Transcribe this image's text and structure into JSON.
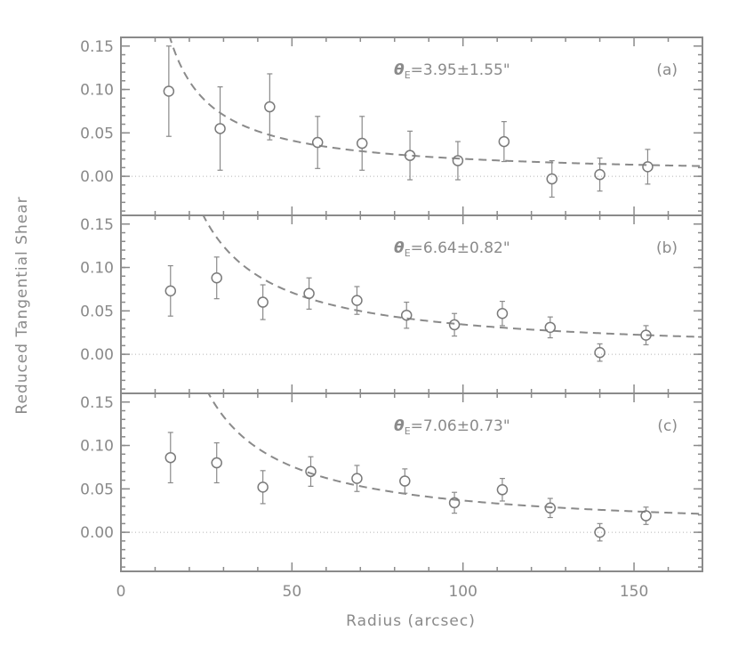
{
  "chart_data": {
    "type": "scatter",
    "xlabel": "Radius (arcsec)",
    "ylabel": "Reduced Tangential Shear",
    "xlim": [
      0,
      170
    ],
    "ylim": [
      -0.045,
      0.16
    ],
    "xticks": [
      0,
      50,
      100,
      150
    ],
    "yticks": [
      0.0,
      0.05,
      0.1,
      0.15
    ],
    "xtick_labels": [
      "0",
      "50",
      "100",
      "150"
    ],
    "ytick_labels": [
      "0.00",
      "0.05",
      "0.10",
      "0.15"
    ],
    "shared_x_axis": true,
    "panels": [
      {
        "label": "(a)",
        "theta_symbol": "θ",
        "theta_subscript": "E",
        "theta_value": "=3.95±1.55\"",
        "theta_E": 3.95,
        "theta_E_err": 1.55,
        "points": [
          {
            "x": 14,
            "y": 0.098,
            "err": 0.052
          },
          {
            "x": 29,
            "y": 0.055,
            "err": 0.048
          },
          {
            "x": 43.5,
            "y": 0.08,
            "err": 0.038
          },
          {
            "x": 57.5,
            "y": 0.039,
            "err": 0.03
          },
          {
            "x": 70.5,
            "y": 0.038,
            "err": 0.031
          },
          {
            "x": 84.5,
            "y": 0.024,
            "err": 0.028
          },
          {
            "x": 98.5,
            "y": 0.018,
            "err": 0.022
          },
          {
            "x": 112,
            "y": 0.04,
            "err": 0.023
          },
          {
            "x": 126,
            "y": -0.003,
            "err": 0.021
          },
          {
            "x": 140,
            "y": 0.002,
            "err": 0.019
          },
          {
            "x": 154,
            "y": 0.011,
            "err": 0.02
          }
        ]
      },
      {
        "label": "(b)",
        "theta_symbol": "θ",
        "theta_subscript": "E",
        "theta_value": "=6.64±0.82\"",
        "theta_E": 6.64,
        "theta_E_err": 0.82,
        "points": [
          {
            "x": 14.5,
            "y": 0.073,
            "err": 0.029
          },
          {
            "x": 28,
            "y": 0.088,
            "err": 0.024
          },
          {
            "x": 41.5,
            "y": 0.06,
            "err": 0.02
          },
          {
            "x": 55,
            "y": 0.07,
            "err": 0.018
          },
          {
            "x": 69,
            "y": 0.062,
            "err": 0.016
          },
          {
            "x": 83.5,
            "y": 0.045,
            "err": 0.015
          },
          {
            "x": 97.5,
            "y": 0.034,
            "err": 0.013
          },
          {
            "x": 111.5,
            "y": 0.047,
            "err": 0.014
          },
          {
            "x": 125.5,
            "y": 0.031,
            "err": 0.012
          },
          {
            "x": 140,
            "y": 0.002,
            "err": 0.01
          },
          {
            "x": 153.5,
            "y": 0.022,
            "err": 0.011
          }
        ]
      },
      {
        "label": "(c)",
        "theta_symbol": "θ",
        "theta_subscript": "E",
        "theta_value": "=7.06±0.73\"",
        "theta_E": 7.06,
        "theta_E_err": 0.73,
        "points": [
          {
            "x": 14.5,
            "y": 0.086,
            "err": 0.029
          },
          {
            "x": 28,
            "y": 0.08,
            "err": 0.023
          },
          {
            "x": 41.5,
            "y": 0.052,
            "err": 0.019
          },
          {
            "x": 55.5,
            "y": 0.07,
            "err": 0.017
          },
          {
            "x": 69,
            "y": 0.062,
            "err": 0.015
          },
          {
            "x": 83,
            "y": 0.059,
            "err": 0.014
          },
          {
            "x": 97.5,
            "y": 0.034,
            "err": 0.012
          },
          {
            "x": 111.5,
            "y": 0.049,
            "err": 0.013
          },
          {
            "x": 125.5,
            "y": 0.028,
            "err": 0.011
          },
          {
            "x": 140,
            "y": 0.0,
            "err": 0.01
          },
          {
            "x": 153.5,
            "y": 0.019,
            "err": 0.01
          }
        ]
      }
    ]
  }
}
